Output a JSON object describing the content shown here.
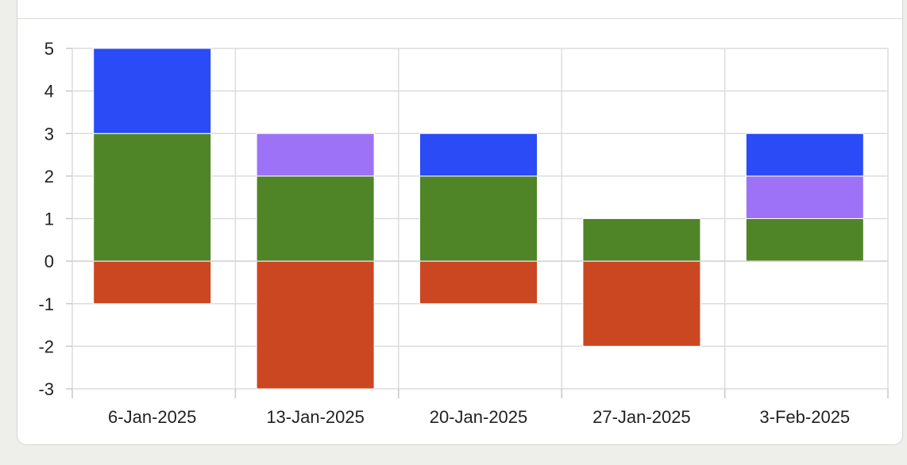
{
  "chart_data": {
    "type": "bar",
    "stacked": true,
    "categories": [
      "6-Jan-2025",
      "13-Jan-2025",
      "20-Jan-2025",
      "27-Jan-2025",
      "3-Feb-2025"
    ],
    "series": [
      {
        "color": "#4f8526",
        "values": [
          3,
          2,
          2,
          1,
          1
        ]
      },
      {
        "color": "#9d72f6",
        "values": [
          0,
          1,
          0,
          0,
          1
        ]
      },
      {
        "color": "#2a4bf6",
        "values": [
          2,
          0,
          1,
          0,
          1
        ]
      },
      {
        "color": "#cb4722",
        "values": [
          -1,
          -3,
          -1,
          -2,
          0
        ]
      }
    ],
    "ylim": [
      -3,
      5
    ],
    "yticks": [
      "5",
      "4",
      "3",
      "2",
      "1",
      "0",
      "-1",
      "-2",
      "-3"
    ],
    "grid": true,
    "title": "",
    "xlabel": "",
    "ylabel": ""
  }
}
